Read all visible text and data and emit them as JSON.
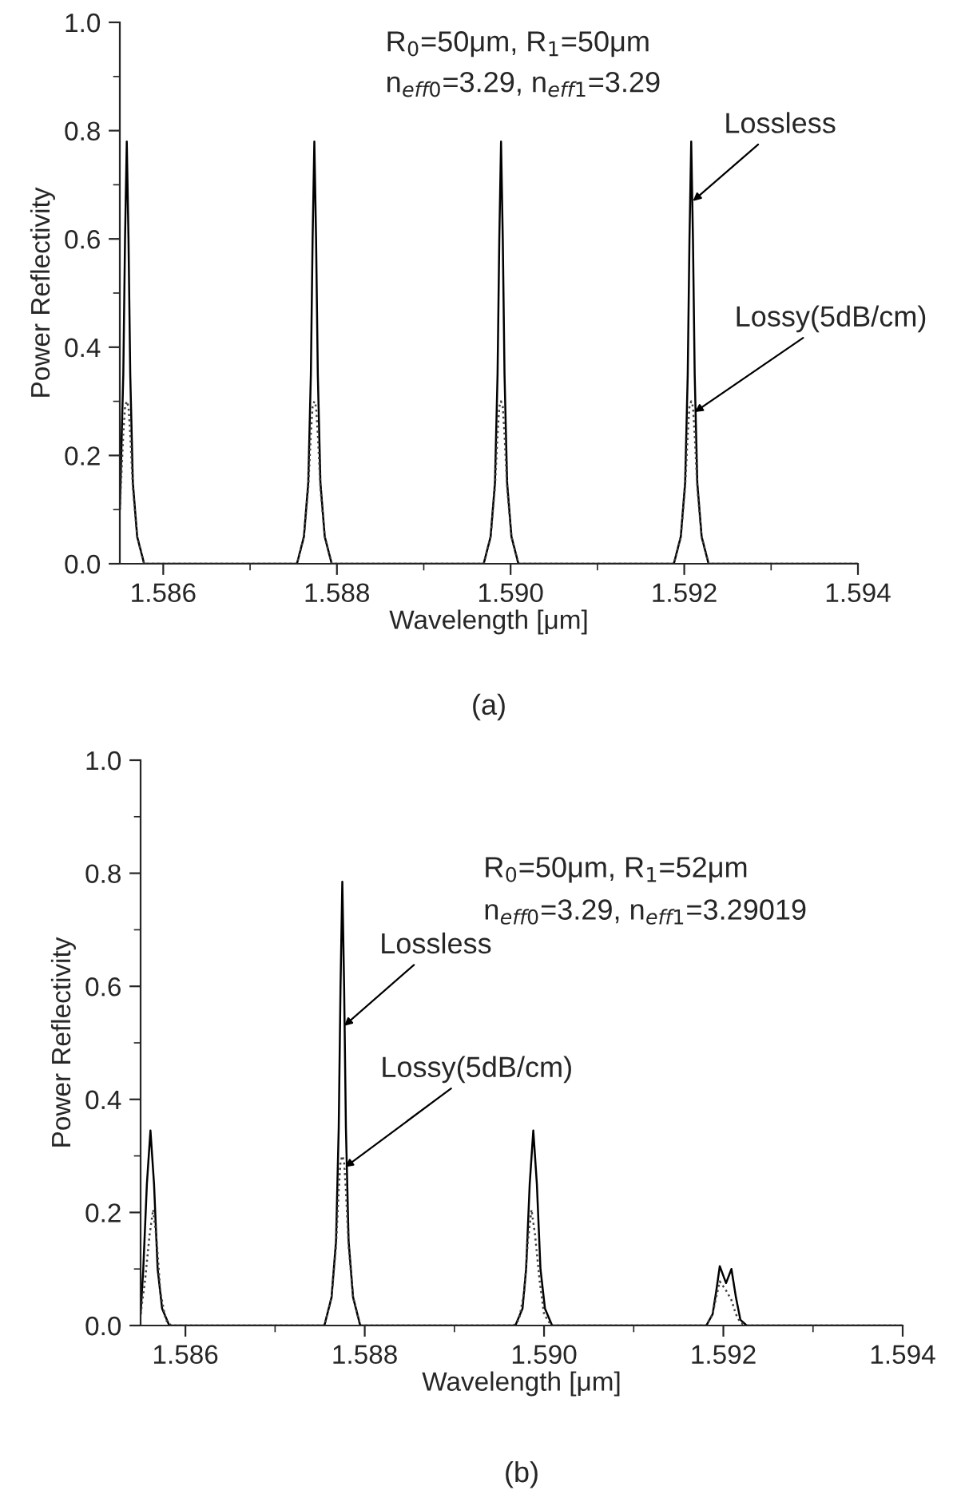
{
  "chart_data": [
    {
      "type": "line",
      "xlabel": "Wavelength [μm]",
      "ylabel": "Power Reflectivity",
      "xlim": [
        1.5855,
        1.594
      ],
      "ylim": [
        0,
        1.0
      ],
      "xticks": [
        1.586,
        {
          "value": 1.587,
          "label": null
        },
        1.588,
        {
          "value": 1.589,
          "label": null
        },
        {
          "value": 1.59,
          "label": "1.590"
        },
        {
          "value": 1.591,
          "label": null
        },
        1.592,
        {
          "value": 1.593,
          "label": null
        },
        1.594
      ],
      "yticks": [
        {
          "value": 0,
          "label": "0.0"
        },
        {
          "value": 0.1,
          "label": null
        },
        {
          "value": 0.2,
          "label": "0.2"
        },
        {
          "value": 0.3,
          "label": null
        },
        {
          "value": 0.4,
          "label": "0.4"
        },
        {
          "value": 0.5,
          "label": null
        },
        {
          "value": 0.6,
          "label": "0.6"
        },
        {
          "value": 0.7,
          "label": null
        },
        {
          "value": 0.8,
          "label": "0.8"
        },
        {
          "value": 0.9,
          "label": null
        },
        {
          "value": 1.0,
          "label": "1.0"
        }
      ],
      "grid": false,
      "legend": false,
      "series": [
        {
          "color": "#000000",
          "line_style": "solid",
          "x": [
            1.5855,
            1.58554,
            1.58556,
            1.58558,
            1.5856,
            1.58562,
            1.58565,
            1.5857,
            1.58578,
            1.58754,
            1.58762,
            1.58767,
            1.5877,
            1.58772,
            1.58774,
            1.58776,
            1.58778,
            1.58781,
            1.58786,
            1.58794,
            1.58969,
            1.58977,
            1.58982,
            1.58985,
            1.58987,
            1.58989,
            1.58991,
            1.58993,
            1.58996,
            1.59001,
            1.59009,
            1.59188,
            1.59196,
            1.59201,
            1.59204,
            1.59206,
            1.59208,
            1.5921,
            1.59212,
            1.59215,
            1.5922,
            1.59228,
            1.594
          ],
          "values": [
            0.1,
            0.35,
            0.6,
            0.78,
            0.6,
            0.35,
            0.15,
            0.05,
            0,
            0,
            0.05,
            0.15,
            0.35,
            0.6,
            0.78,
            0.6,
            0.35,
            0.15,
            0.05,
            0,
            0,
            0.05,
            0.15,
            0.35,
            0.6,
            0.78,
            0.6,
            0.35,
            0.15,
            0.05,
            0,
            0,
            0.05,
            0.15,
            0.35,
            0.6,
            0.78,
            0.6,
            0.35,
            0.15,
            0.05,
            0,
            0
          ]
        },
        {
          "color": "#404040",
          "line_style": "dotted",
          "x": [
            1.5855,
            1.58554,
            1.58556,
            1.58558,
            1.5856,
            1.58562,
            1.58565,
            1.5857,
            1.58578,
            1.58754,
            1.58762,
            1.58767,
            1.5877,
            1.58772,
            1.58774,
            1.58776,
            1.58778,
            1.58781,
            1.58786,
            1.58794,
            1.58969,
            1.58977,
            1.58982,
            1.58985,
            1.58987,
            1.58989,
            1.58991,
            1.58993,
            1.58996,
            1.59001,
            1.59009,
            1.59188,
            1.59196,
            1.59201,
            1.59204,
            1.59206,
            1.59208,
            1.5921,
            1.59212,
            1.59215,
            1.5922,
            1.59228,
            1.594
          ],
          "values": [
            0.1,
            0.24,
            0.29,
            0.3,
            0.29,
            0.24,
            0.14,
            0.05,
            0,
            0,
            0.05,
            0.14,
            0.24,
            0.29,
            0.3,
            0.29,
            0.24,
            0.14,
            0.05,
            0,
            0,
            0.05,
            0.14,
            0.24,
            0.29,
            0.3,
            0.29,
            0.24,
            0.14,
            0.05,
            0,
            0,
            0.05,
            0.14,
            0.24,
            0.29,
            0.3,
            0.29,
            0.24,
            0.14,
            0.05,
            0,
            0
          ]
        }
      ],
      "annotations": [
        "R$_{0}$=50μm, R$_{1}$=50μm",
        "n$_{eff0}$=3.29, n$_{eff1}$=3.29",
        {
          "text": "Lossless",
          "x": 1.5921,
          "y": 0.67
        },
        {
          "text": "Lossy(5dB/cm)",
          "x": 1.59212,
          "y": 0.28
        },
        "(a)"
      ]
    },
    {
      "type": "line",
      "xlabel": "Wavelength [μm]",
      "ylabel": "Power Reflectivity",
      "xlim": [
        1.5855,
        1.594
      ],
      "ylim": [
        0,
        1.0
      ],
      "xticks": [
        1.586,
        {
          "value": 1.587,
          "label": null
        },
        1.588,
        {
          "value": 1.589,
          "label": null
        },
        {
          "value": 1.59,
          "label": "1.590"
        },
        {
          "value": 1.591,
          "label": null
        },
        1.592,
        {
          "value": 1.593,
          "label": null
        },
        1.594
      ],
      "yticks": [
        {
          "value": 0,
          "label": "0.0"
        },
        {
          "value": 0.1,
          "label": null
        },
        {
          "value": 0.2,
          "label": "0.2"
        },
        {
          "value": 0.3,
          "label": null
        },
        {
          "value": 0.4,
          "label": "0.4"
        },
        {
          "value": 0.5,
          "label": null
        },
        {
          "value": 0.6,
          "label": "0.6"
        },
        {
          "value": 0.7,
          "label": null
        },
        {
          "value": 0.8,
          "label": "0.8"
        },
        {
          "value": 0.9,
          "label": null
        },
        {
          "value": 1.0,
          "label": "1.0"
        }
      ],
      "grid": false,
      "legend": false,
      "series": [
        {
          "color": "#000000",
          "line_style": "solid",
          "x": [
            1.5855,
            1.58553,
            1.58557,
            1.58561,
            1.58565,
            1.58569,
            1.58574,
            1.58582,
            1.58755,
            1.58763,
            1.58768,
            1.58771,
            1.58773,
            1.58775,
            1.58777,
            1.58779,
            1.58782,
            1.58787,
            1.58795,
            1.58968,
            1.58976,
            1.5898,
            1.58984,
            1.58988,
            1.58992,
            1.58996,
            1.59001,
            1.59009,
            1.59181,
            1.59188,
            1.59192,
            1.59196,
            1.59203,
            1.59209,
            1.59214,
            1.59219,
            1.59226,
            1.594
          ],
          "values": [
            0.02,
            0.1,
            0.25,
            0.345,
            0.25,
            0.1,
            0.03,
            0,
            0,
            0.05,
            0.15,
            0.35,
            0.6,
            0.785,
            0.6,
            0.35,
            0.15,
            0.05,
            0,
            0,
            0.03,
            0.1,
            0.25,
            0.345,
            0.25,
            0.1,
            0.03,
            0,
            0,
            0.02,
            0.06,
            0.105,
            0.075,
            0.1,
            0.05,
            0.01,
            0,
            0
          ]
        },
        {
          "color": "#404040",
          "line_style": "dotted",
          "x": [
            1.5855,
            1.58555,
            1.5856,
            1.58564,
            1.58568,
            1.58572,
            1.58578,
            1.58584,
            1.58755,
            1.58763,
            1.58768,
            1.58771,
            1.58773,
            1.58775,
            1.58777,
            1.58779,
            1.58782,
            1.58787,
            1.58795,
            1.58966,
            1.58972,
            1.58978,
            1.58982,
            1.58986,
            1.5899,
            1.58995,
            1.59,
            1.59008,
            1.59181,
            1.59188,
            1.59192,
            1.59196,
            1.59203,
            1.59209,
            1.59214,
            1.59219,
            1.59226,
            1.594
          ],
          "values": [
            0.02,
            0.08,
            0.16,
            0.205,
            0.15,
            0.06,
            0.01,
            0,
            0,
            0.05,
            0.14,
            0.24,
            0.29,
            0.3,
            0.29,
            0.24,
            0.14,
            0.05,
            0,
            0,
            0.01,
            0.06,
            0.15,
            0.205,
            0.16,
            0.08,
            0.02,
            0,
            0,
            0.02,
            0.05,
            0.078,
            0.062,
            0.045,
            0.02,
            0.005,
            0,
            0
          ]
        }
      ],
      "annotations": [
        "R$_{0}$=50μm, R$_{1}$=52μm",
        "n$_{eff0}$=3.29, n$_{eff1}$=3.29019",
        {
          "text": "Lossless",
          "x": 1.58777,
          "y": 0.53
        },
        {
          "text": "Lossy(5dB/cm)",
          "x": 1.58778,
          "y": 0.28
        },
        "(b)"
      ]
    }
  ]
}
